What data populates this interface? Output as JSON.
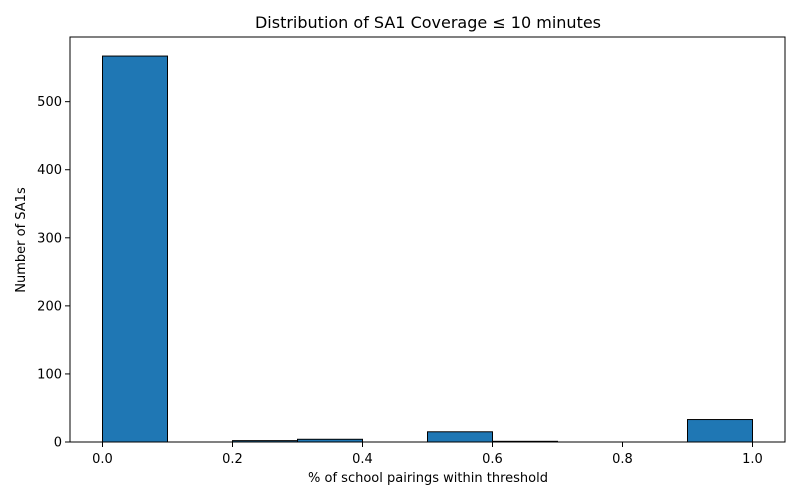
{
  "chart_data": {
    "type": "bar",
    "title": "Distribution of SA1 Coverage ≤ 10 minutes",
    "xlabel": "% of school pairings within threshold",
    "ylabel": "Number of SA1s",
    "bins": [
      {
        "start": 0.0,
        "end": 0.1,
        "count": 567
      },
      {
        "start": 0.1,
        "end": 0.2,
        "count": 0
      },
      {
        "start": 0.2,
        "end": 0.3,
        "count": 2
      },
      {
        "start": 0.3,
        "end": 0.4,
        "count": 4
      },
      {
        "start": 0.4,
        "end": 0.5,
        "count": 0
      },
      {
        "start": 0.5,
        "end": 0.6,
        "count": 15
      },
      {
        "start": 0.6,
        "end": 0.7,
        "count": 1
      },
      {
        "start": 0.7,
        "end": 0.8,
        "count": 0
      },
      {
        "start": 0.8,
        "end": 0.9,
        "count": 0
      },
      {
        "start": 0.9,
        "end": 1.0,
        "count": 33
      }
    ],
    "xlim": [
      -0.05,
      1.05
    ],
    "ylim": [
      0,
      595
    ],
    "xticks": [
      "0.0",
      "0.2",
      "0.4",
      "0.6",
      "0.8",
      "1.0"
    ],
    "yticks": [
      "0",
      "100",
      "200",
      "300",
      "400",
      "500"
    ],
    "bar_color": "#1f77b4",
    "edge_color": "#000000",
    "grid": false,
    "legend": "none"
  }
}
